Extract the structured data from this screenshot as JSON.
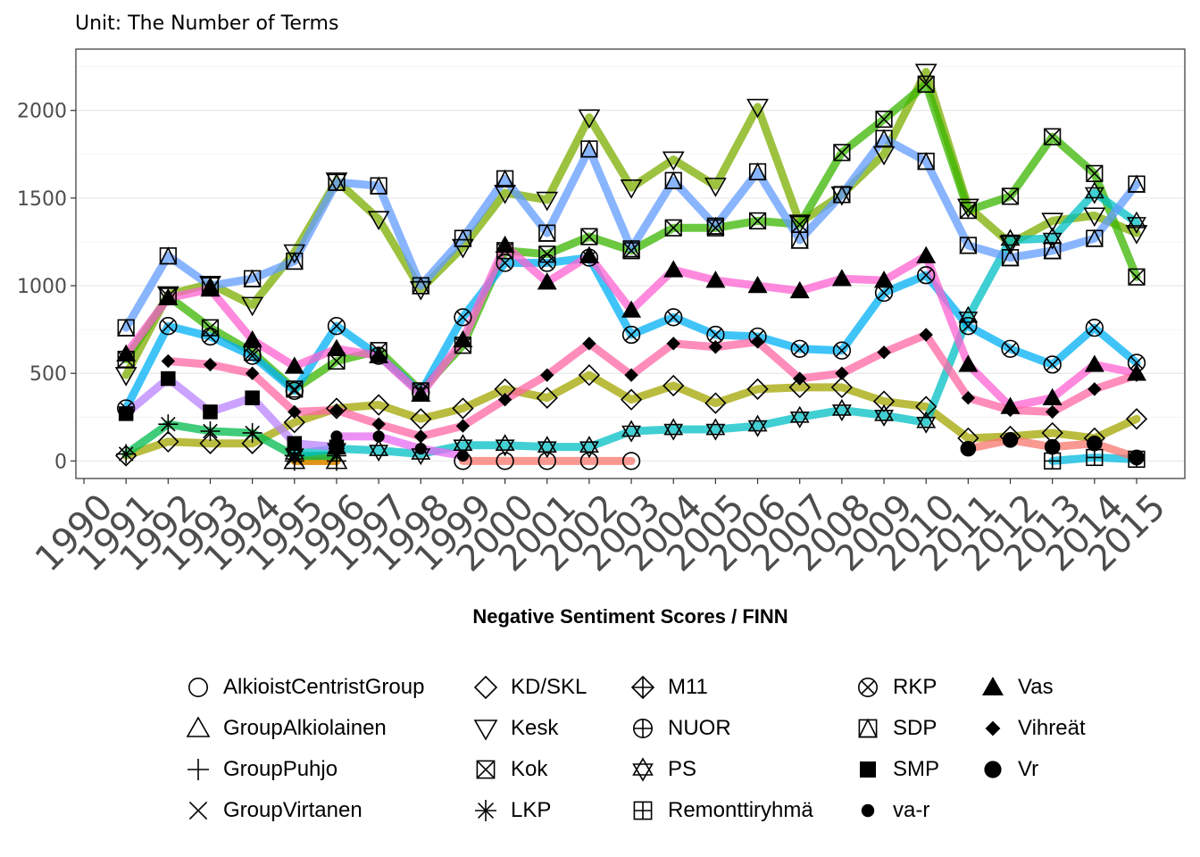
{
  "chart_data": {
    "type": "line",
    "subtitle": "Unit: The Number of Terms",
    "xlabel": "Negative Sentiment Scores / FINN",
    "ylabel": "",
    "x": [
      1990,
      1991,
      1992,
      1993,
      1994,
      1995,
      1996,
      1997,
      1998,
      1999,
      2000,
      2001,
      2002,
      2003,
      2004,
      2005,
      2006,
      2007,
      2008,
      2009,
      2010,
      2011,
      2012,
      2013,
      2014,
      2015
    ],
    "xlim": [
      1990,
      2015
    ],
    "ylim": [
      -100,
      2350
    ],
    "yticks": [
      0,
      500,
      1000,
      1500,
      2000
    ],
    "grid": true,
    "legend_position": "bottom",
    "series": [
      {
        "name": "AlkioistCentristGroup",
        "color": "#F8766D",
        "shape": "circle-open",
        "points": [
          [
            1999,
            0
          ],
          [
            2000,
            0
          ],
          [
            2001,
            0
          ],
          [
            2002,
            0
          ],
          [
            2003,
            0
          ]
        ]
      },
      {
        "name": "GroupAlkiolainen",
        "color": "#EA8331",
        "shape": "triangle-up-open",
        "points": [
          [
            1995,
            0
          ],
          [
            1996,
            0
          ]
        ]
      },
      {
        "name": "GroupPuhjo",
        "color": "#D89000",
        "shape": "plus",
        "points": [
          [
            1995,
            0
          ],
          [
            1996,
            0
          ]
        ]
      },
      {
        "name": "GroupVirtanen",
        "color": "#C09B00",
        "shape": "cross",
        "points": [
          [
            1995,
            20
          ],
          [
            1996,
            30
          ]
        ]
      },
      {
        "name": "KD/SKL",
        "color": "#A3A500",
        "shape": "diamond-open",
        "points": [
          [
            1991,
            30
          ],
          [
            1992,
            110
          ],
          [
            1993,
            100
          ],
          [
            1994,
            100
          ],
          [
            1995,
            220
          ],
          [
            1996,
            300
          ],
          [
            1997,
            320
          ],
          [
            1998,
            240
          ],
          [
            1999,
            300
          ],
          [
            2000,
            410
          ],
          [
            2001,
            360
          ],
          [
            2002,
            490
          ],
          [
            2003,
            350
          ],
          [
            2004,
            430
          ],
          [
            2005,
            330
          ],
          [
            2006,
            410
          ],
          [
            2007,
            420
          ],
          [
            2008,
            420
          ],
          [
            2009,
            340
          ],
          [
            2010,
            310
          ],
          [
            2011,
            130
          ],
          [
            2012,
            140
          ],
          [
            2013,
            160
          ],
          [
            2014,
            130
          ],
          [
            2015,
            240
          ]
        ]
      },
      {
        "name": "Kesk",
        "color": "#7CAE00",
        "shape": "triangle-down-open",
        "points": [
          [
            1991,
            490
          ],
          [
            1992,
            950
          ],
          [
            1993,
            1010
          ],
          [
            1994,
            890
          ],
          [
            1995,
            1190
          ],
          [
            1996,
            1600
          ],
          [
            1997,
            1380
          ],
          [
            1998,
            980
          ],
          [
            1999,
            1220
          ],
          [
            2000,
            1530
          ],
          [
            2001,
            1490
          ],
          [
            2002,
            1960
          ],
          [
            2003,
            1560
          ],
          [
            2004,
            1720
          ],
          [
            2005,
            1570
          ],
          [
            2006,
            2020
          ],
          [
            2007,
            1360
          ],
          [
            2008,
            1520
          ],
          [
            2009,
            1750
          ],
          [
            2010,
            2220
          ],
          [
            2011,
            1450
          ],
          [
            2012,
            1240
          ],
          [
            2013,
            1370
          ],
          [
            2014,
            1400
          ],
          [
            2015,
            1300
          ]
        ]
      },
      {
        "name": "Kok",
        "color": "#39B600",
        "shape": "square-cross",
        "points": [
          [
            1991,
            580
          ],
          [
            1992,
            940
          ],
          [
            1993,
            760
          ],
          [
            1994,
            620
          ],
          [
            1995,
            410
          ],
          [
            1996,
            570
          ],
          [
            1997,
            630
          ],
          [
            1998,
            400
          ],
          [
            1999,
            660
          ],
          [
            2000,
            1200
          ],
          [
            2001,
            1180
          ],
          [
            2002,
            1280
          ],
          [
            2003,
            1200
          ],
          [
            2004,
            1330
          ],
          [
            2005,
            1330
          ],
          [
            2006,
            1370
          ],
          [
            2007,
            1350
          ],
          [
            2008,
            1760
          ],
          [
            2009,
            1950
          ],
          [
            2010,
            2150
          ],
          [
            2011,
            1430
          ],
          [
            2012,
            1510
          ],
          [
            2013,
            1850
          ],
          [
            2014,
            1640
          ],
          [
            2015,
            1050
          ]
        ]
      },
      {
        "name": "LKP",
        "color": "#00BB4E",
        "shape": "asterisk",
        "points": [
          [
            1991,
            40
          ],
          [
            1992,
            210
          ],
          [
            1993,
            170
          ],
          [
            1994,
            160
          ],
          [
            1995,
            30
          ],
          [
            1996,
            30
          ]
        ]
      },
      {
        "name": "M11",
        "color": "#00BF7D",
        "shape": "diamond-plus",
        "points": []
      },
      {
        "name": "NUOR",
        "color": "#00C1A3",
        "shape": "circle-plus",
        "points": []
      },
      {
        "name": "PS",
        "color": "#00BFC4",
        "shape": "star-of-david",
        "points": [
          [
            1995,
            40
          ],
          [
            1996,
            70
          ],
          [
            1997,
            60
          ],
          [
            1998,
            40
          ],
          [
            1999,
            90
          ],
          [
            2000,
            90
          ],
          [
            2001,
            80
          ],
          [
            2002,
            80
          ],
          [
            2003,
            170
          ],
          [
            2004,
            180
          ],
          [
            2005,
            180
          ],
          [
            2006,
            200
          ],
          [
            2007,
            250
          ],
          [
            2008,
            290
          ],
          [
            2009,
            260
          ],
          [
            2010,
            220
          ],
          [
            2011,
            820
          ],
          [
            2012,
            1260
          ],
          [
            2013,
            1270
          ],
          [
            2014,
            1530
          ],
          [
            2015,
            1360
          ]
        ]
      },
      {
        "name": "Remonttiryhmä",
        "color": "#00BAE0",
        "shape": "square-plus",
        "points": [
          [
            2013,
            0
          ],
          [
            2014,
            20
          ],
          [
            2015,
            10
          ]
        ]
      },
      {
        "name": "RKP",
        "color": "#00B0F6",
        "shape": "circle-cross",
        "points": [
          [
            1991,
            300
          ],
          [
            1992,
            770
          ],
          [
            1993,
            710
          ],
          [
            1994,
            600
          ],
          [
            1995,
            400
          ],
          [
            1996,
            770
          ],
          [
            1997,
            600
          ],
          [
            1998,
            390
          ],
          [
            1999,
            820
          ],
          [
            2000,
            1130
          ],
          [
            2001,
            1130
          ],
          [
            2002,
            1160
          ],
          [
            2003,
            720
          ],
          [
            2004,
            820
          ],
          [
            2005,
            720
          ],
          [
            2006,
            710
          ],
          [
            2007,
            640
          ],
          [
            2008,
            630
          ],
          [
            2009,
            960
          ],
          [
            2010,
            1060
          ],
          [
            2011,
            770
          ],
          [
            2012,
            640
          ],
          [
            2013,
            550
          ],
          [
            2014,
            760
          ],
          [
            2015,
            560
          ]
        ]
      },
      {
        "name": "SDP",
        "color": "#619CFF",
        "shape": "square-triangle",
        "points": [
          [
            1991,
            760
          ],
          [
            1992,
            1170
          ],
          [
            1993,
            1000
          ],
          [
            1994,
            1040
          ],
          [
            1995,
            1140
          ],
          [
            1996,
            1590
          ],
          [
            1997,
            1570
          ],
          [
            1998,
            1000
          ],
          [
            1999,
            1270
          ],
          [
            2000,
            1610
          ],
          [
            2001,
            1300
          ],
          [
            2002,
            1780
          ],
          [
            2003,
            1210
          ],
          [
            2004,
            1600
          ],
          [
            2005,
            1340
          ],
          [
            2006,
            1650
          ],
          [
            2007,
            1260
          ],
          [
            2008,
            1520
          ],
          [
            2009,
            1840
          ],
          [
            2010,
            1710
          ],
          [
            2011,
            1230
          ],
          [
            2012,
            1160
          ],
          [
            2013,
            1200
          ],
          [
            2014,
            1270
          ],
          [
            2015,
            1580
          ]
        ]
      },
      {
        "name": "SMP",
        "color": "#B983FF",
        "shape": "square-filled",
        "points": [
          [
            1991,
            270
          ],
          [
            1992,
            470
          ],
          [
            1993,
            280
          ],
          [
            1994,
            360
          ],
          [
            1995,
            100
          ],
          [
            1996,
            80
          ]
        ]
      },
      {
        "name": "va-r",
        "color": "#E76BF3",
        "shape": "circle-small-filled",
        "points": [
          [
            1996,
            140
          ],
          [
            1997,
            140
          ],
          [
            1998,
            70
          ],
          [
            1999,
            30
          ]
        ]
      },
      {
        "name": "Vas",
        "color": "#FD61D1",
        "shape": "triangle-up-filled",
        "points": [
          [
            1991,
            610
          ],
          [
            1992,
            930
          ],
          [
            1993,
            980
          ],
          [
            1994,
            690
          ],
          [
            1995,
            540
          ],
          [
            1996,
            640
          ],
          [
            1997,
            600
          ],
          [
            1998,
            380
          ],
          [
            1999,
            690
          ],
          [
            2000,
            1230
          ],
          [
            2001,
            1020
          ],
          [
            2002,
            1170
          ],
          [
            2003,
            860
          ],
          [
            2004,
            1090
          ],
          [
            2005,
            1030
          ],
          [
            2006,
            1000
          ],
          [
            2007,
            970
          ],
          [
            2008,
            1040
          ],
          [
            2009,
            1030
          ],
          [
            2010,
            1170
          ],
          [
            2011,
            550
          ],
          [
            2012,
            310
          ],
          [
            2013,
            360
          ],
          [
            2014,
            550
          ],
          [
            2015,
            500
          ]
        ]
      },
      {
        "name": "Vihreät",
        "color": "#FF67A4",
        "shape": "diamond-filled",
        "points": [
          [
            1992,
            570
          ],
          [
            1993,
            550
          ],
          [
            1994,
            500
          ],
          [
            1995,
            280
          ],
          [
            1996,
            290
          ],
          [
            1997,
            210
          ],
          [
            1998,
            140
          ],
          [
            1999,
            200
          ],
          [
            2000,
            350
          ],
          [
            2001,
            490
          ],
          [
            2002,
            670
          ],
          [
            2003,
            490
          ],
          [
            2004,
            670
          ],
          [
            2005,
            650
          ],
          [
            2006,
            680
          ],
          [
            2007,
            470
          ],
          [
            2008,
            500
          ],
          [
            2009,
            620
          ],
          [
            2010,
            720
          ],
          [
            2011,
            360
          ],
          [
            2012,
            290
          ],
          [
            2013,
            280
          ],
          [
            2014,
            410
          ],
          [
            2015,
            490
          ]
        ]
      },
      {
        "name": "Vr",
        "color": "#F8766D",
        "shape": "circle-filled",
        "points": [
          [
            2011,
            70
          ],
          [
            2012,
            120
          ],
          [
            2013,
            80
          ],
          [
            2014,
            100
          ],
          [
            2015,
            20
          ]
        ]
      }
    ]
  },
  "legend": {
    "items": [
      {
        "label": "AlkioistCentristGroup",
        "shape": "circle-open"
      },
      {
        "label": "GroupAlkiolainen",
        "shape": "triangle-up-open"
      },
      {
        "label": "GroupPuhjo",
        "shape": "plus"
      },
      {
        "label": "GroupVirtanen",
        "shape": "cross"
      },
      {
        "label": "KD/SKL",
        "shape": "diamond-open"
      },
      {
        "label": "Kesk",
        "shape": "triangle-down-open"
      },
      {
        "label": "Kok",
        "shape": "square-cross"
      },
      {
        "label": "LKP",
        "shape": "asterisk"
      },
      {
        "label": "M11",
        "shape": "diamond-plus"
      },
      {
        "label": "NUOR",
        "shape": "circle-plus"
      },
      {
        "label": "PS",
        "shape": "star-of-david"
      },
      {
        "label": "Remonttiryhmä",
        "shape": "square-plus"
      },
      {
        "label": "RKP",
        "shape": "circle-cross"
      },
      {
        "label": "SDP",
        "shape": "square-triangle"
      },
      {
        "label": "SMP",
        "shape": "square-filled"
      },
      {
        "label": "va-r",
        "shape": "circle-small-filled"
      },
      {
        "label": "Vas",
        "shape": "triangle-up-filled"
      },
      {
        "label": "Vihreät",
        "shape": "diamond-filled"
      },
      {
        "label": "Vr",
        "shape": "circle-filled"
      }
    ]
  }
}
